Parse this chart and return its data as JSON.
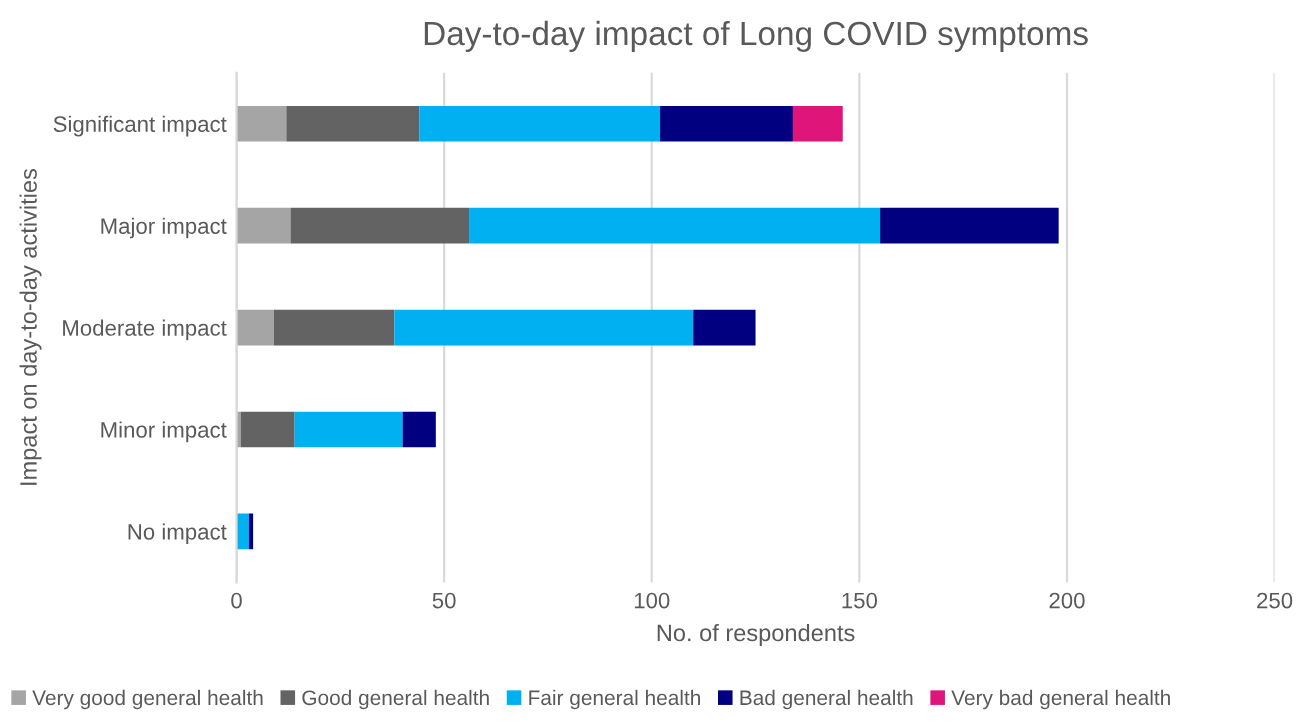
{
  "chart_data": {
    "type": "bar",
    "orientation": "horizontal",
    "stacked": true,
    "title": "Day-to-day impact of Long COVID symptoms",
    "xlabel": "No. of respondents",
    "ylabel": "Impact on day-to-day activities",
    "categories": [
      "Significant impact",
      "Major impact",
      "Moderate impact",
      "Minor impact",
      "No impact"
    ],
    "series": [
      {
        "name": "Very good general health",
        "color": "#a5a5a5",
        "values": [
          12,
          13,
          9,
          1,
          0
        ]
      },
      {
        "name": "Good general health",
        "color": "#636363",
        "values": [
          32,
          43,
          29,
          13,
          0
        ]
      },
      {
        "name": "Fair general health",
        "color": "#00b0f0",
        "values": [
          58,
          99,
          72,
          26,
          3
        ]
      },
      {
        "name": "Bad general health",
        "color": "#000080",
        "values": [
          32,
          43,
          15,
          8,
          1
        ]
      },
      {
        "name": "Very bad general health",
        "color": "#e0157a",
        "values": [
          12,
          0,
          0,
          0,
          0
        ]
      }
    ],
    "xlim": [
      0,
      250
    ],
    "xticks": [
      0,
      50,
      100,
      150,
      200,
      250
    ],
    "grid": "x",
    "legend": "bottom"
  }
}
